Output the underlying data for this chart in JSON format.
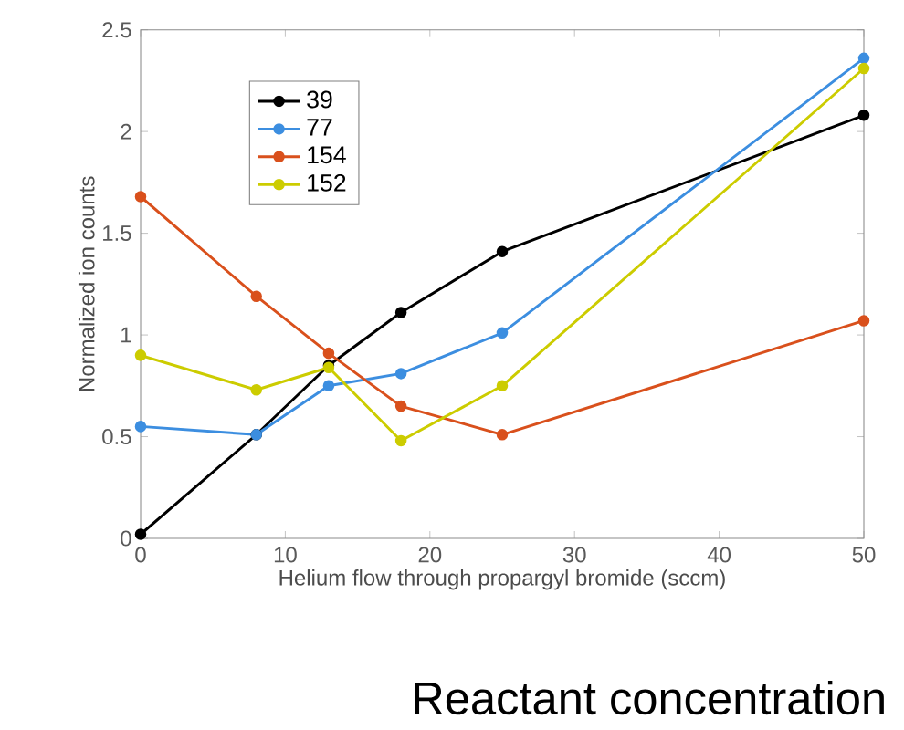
{
  "chart_data": {
    "type": "line",
    "xlabel": "Helium flow through propargyl bromide (sccm)",
    "ylabel": "Normalized ion counts",
    "x": [
      0,
      8,
      13,
      18,
      25,
      50
    ],
    "series": [
      {
        "name": "39",
        "color": "#000000",
        "values": [
          0.02,
          0.51,
          0.85,
          1.11,
          1.41,
          2.08
        ]
      },
      {
        "name": "77",
        "color": "#3c8ee0",
        "values": [
          0.55,
          0.51,
          0.75,
          0.81,
          1.01,
          2.36
        ]
      },
      {
        "name": "154",
        "color": "#d9501c",
        "values": [
          1.68,
          1.19,
          0.91,
          0.65,
          0.51,
          1.07
        ]
      },
      {
        "name": "152",
        "color": "#cccc00",
        "values": [
          0.9,
          0.73,
          0.84,
          0.48,
          0.75,
          2.31
        ]
      }
    ],
    "xlim": [
      0,
      50
    ],
    "ylim": [
      0,
      2.5
    ],
    "xticks": [
      0,
      10,
      20,
      30,
      40,
      50
    ],
    "yticks": [
      0,
      0.5,
      1,
      1.5,
      2,
      2.5
    ],
    "legend": "top left",
    "marker": "circle",
    "line_style": "solid",
    "grid": false,
    "annotations": [
      "Reactant concentration"
    ]
  }
}
